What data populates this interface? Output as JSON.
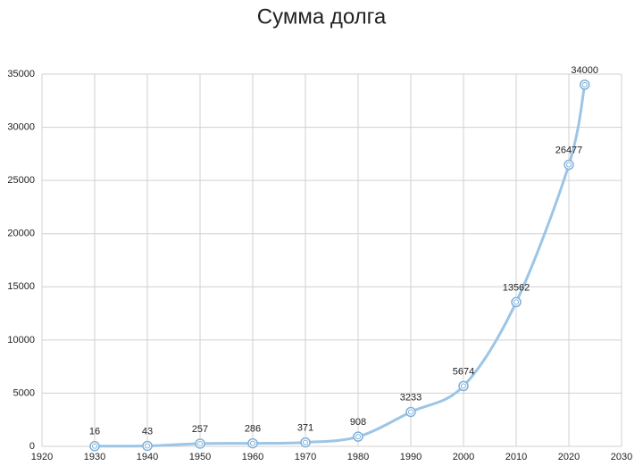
{
  "chart_data": {
    "type": "line",
    "title": "Сумма долга",
    "x": [
      1930,
      1940,
      1950,
      1960,
      1970,
      1980,
      1990,
      2000,
      2010,
      2020,
      2023
    ],
    "series": [
      {
        "name": "Сумма долга",
        "color": "#9cc5e6",
        "values": [
          16,
          43,
          257,
          286,
          371,
          908,
          3233,
          5674,
          13562,
          26477,
          34000
        ]
      }
    ],
    "xlim": [
      1920,
      2030
    ],
    "xticks": [
      1920,
      1930,
      1940,
      1950,
      1960,
      1970,
      1980,
      1990,
      2000,
      2010,
      2020,
      2030
    ],
    "ylim": [
      0,
      35000
    ],
    "yticks": [
      0,
      5000,
      10000,
      15000,
      20000,
      25000,
      30000,
      35000
    ],
    "grid": true,
    "data_labels": true
  }
}
